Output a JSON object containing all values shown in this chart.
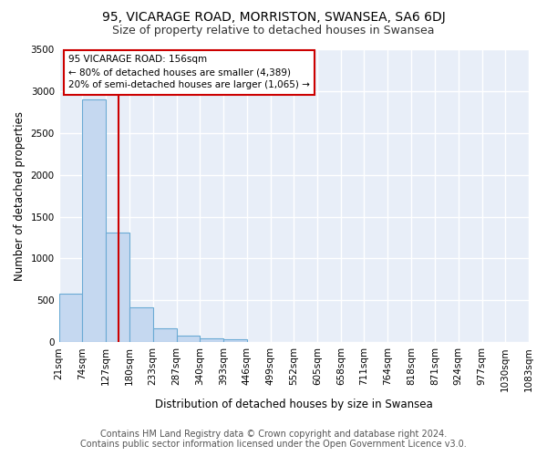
{
  "title": "95, VICARAGE ROAD, MORRISTON, SWANSEA, SA6 6DJ",
  "subtitle": "Size of property relative to detached houses in Swansea",
  "xlabel": "Distribution of detached houses by size in Swansea",
  "ylabel": "Number of detached properties",
  "footer_line1": "Contains HM Land Registry data © Crown copyright and database right 2024.",
  "footer_line2": "Contains public sector information licensed under the Open Government Licence v3.0.",
  "bar_edges": [
    21,
    74,
    127,
    180,
    233,
    287,
    340,
    393,
    446,
    499,
    552,
    605,
    658,
    711,
    764,
    818,
    871,
    924,
    977,
    1030,
    1083
  ],
  "bar_heights": [
    580,
    2900,
    1310,
    420,
    165,
    75,
    50,
    35,
    0,
    0,
    0,
    0,
    0,
    0,
    0,
    0,
    0,
    0,
    0,
    0
  ],
  "bar_color": "#c5d8f0",
  "bar_edgecolor": "#6aaad4",
  "property_size": 156,
  "red_line_color": "#cc0000",
  "annotation_line1": "95 VICARAGE ROAD: 156sqm",
  "annotation_line2": "← 80% of detached houses are smaller (4,389)",
  "annotation_line3": "20% of semi-detached houses are larger (1,065) →",
  "annotation_box_color": "#cc0000",
  "annotation_fill": "#ffffff",
  "ylim": [
    0,
    3500
  ],
  "yticks": [
    0,
    500,
    1000,
    1500,
    2000,
    2500,
    3000,
    3500
  ],
  "background_color": "#e8eef8",
  "grid_color": "#ffffff",
  "title_fontsize": 10,
  "subtitle_fontsize": 9,
  "axis_label_fontsize": 8.5,
  "tick_fontsize": 7.5,
  "footer_fontsize": 7
}
